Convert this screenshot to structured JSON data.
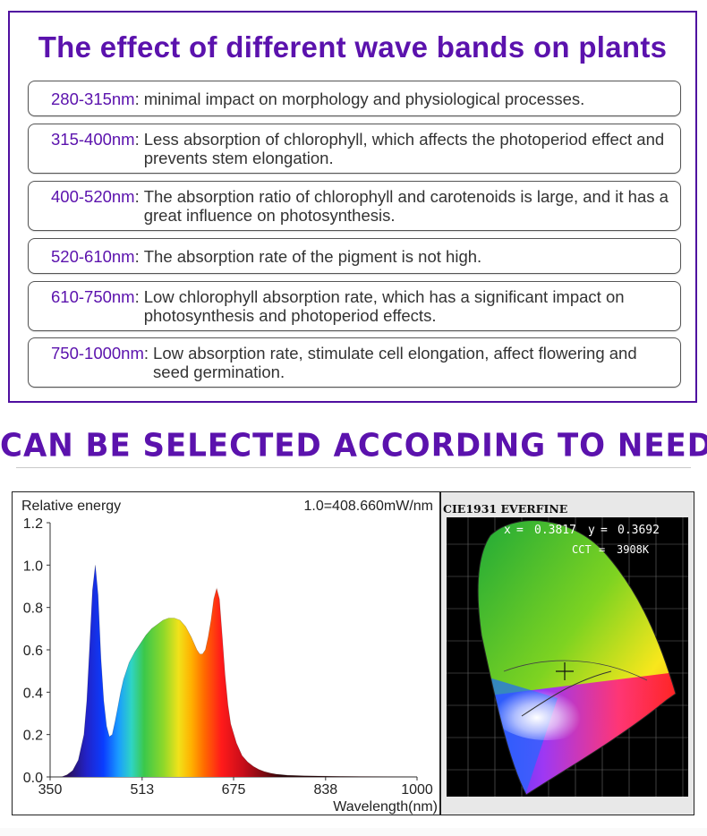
{
  "panel": {
    "title": "The effect of different wave bands on plants",
    "bands": [
      {
        "range": "280-315nm",
        "sep": ":",
        "lines": [
          "minimal impact on morphology and physiological processes."
        ]
      },
      {
        "range": "315-400nm",
        "sep": ":",
        "lines": [
          "Less absorption of chlorophyll, which affects the photoperiod effect and",
          "prevents stem elongation."
        ]
      },
      {
        "range": "400-520nm",
        "sep": ":",
        "lines": [
          "The absorption ratio of chlorophyll and carotenoids is large, and it has a",
          "great influence on photosynthesis."
        ]
      },
      {
        "range": "520-610nm",
        "sep": ":",
        "lines": [
          "The absorption rate of the pigment is not high."
        ]
      },
      {
        "range": "610-750nm",
        "sep": ":",
        "lines": [
          "Low chlorophyll absorption rate, which has a significant impact on",
          "photosynthesis and photoperiod effects."
        ]
      },
      {
        "range": "750-1000nm",
        "sep": ":",
        "lines": [
          "Low absorption rate, stimulate cell elongation, affect flowering and",
          "seed germination."
        ]
      }
    ]
  },
  "heading2": "CAN BE SELECTED ACCORDING TO NEEDS",
  "chart_data": {
    "type": "area",
    "ylabel": "Relative energy",
    "xlabel": "Wavelength(nm)",
    "scale_note": "1.0=408.660mW/nm",
    "xlim": [
      350,
      1000
    ],
    "ylim": [
      0,
      1.2
    ],
    "x_ticks": [
      350,
      513,
      675,
      838,
      1000
    ],
    "y_ticks": [
      "0.0",
      "0.2",
      "0.4",
      "0.6",
      "0.8",
      "1.0",
      "1.2"
    ],
    "x": [
      370,
      380,
      390,
      400,
      410,
      415,
      420,
      425,
      430,
      435,
      440,
      445,
      450,
      455,
      460,
      465,
      470,
      475,
      480,
      490,
      500,
      510,
      520,
      530,
      540,
      550,
      560,
      570,
      580,
      590,
      600,
      610,
      615,
      620,
      625,
      630,
      635,
      640,
      645,
      650,
      655,
      660,
      665,
      670,
      680,
      690,
      700,
      710,
      720,
      730,
      740,
      750,
      770,
      800,
      850,
      900,
      950,
      1000
    ],
    "y": [
      0.0,
      0.01,
      0.03,
      0.08,
      0.2,
      0.36,
      0.62,
      0.88,
      1.0,
      0.86,
      0.56,
      0.36,
      0.24,
      0.19,
      0.2,
      0.26,
      0.33,
      0.4,
      0.46,
      0.54,
      0.59,
      0.63,
      0.67,
      0.7,
      0.72,
      0.74,
      0.75,
      0.75,
      0.74,
      0.71,
      0.66,
      0.6,
      0.58,
      0.58,
      0.6,
      0.66,
      0.74,
      0.84,
      0.89,
      0.84,
      0.66,
      0.48,
      0.34,
      0.25,
      0.16,
      0.1,
      0.07,
      0.05,
      0.035,
      0.025,
      0.018,
      0.013,
      0.008,
      0.005,
      0.003,
      0.002,
      0.001,
      0.0
    ]
  },
  "cie": {
    "header": "CIE1931 EVERFINE",
    "x_label": "x",
    "x_value": "0.3817",
    "y_label": "y",
    "y_value": "0.3692",
    "cct_label": "CCT",
    "cct_value": "3908K"
  }
}
